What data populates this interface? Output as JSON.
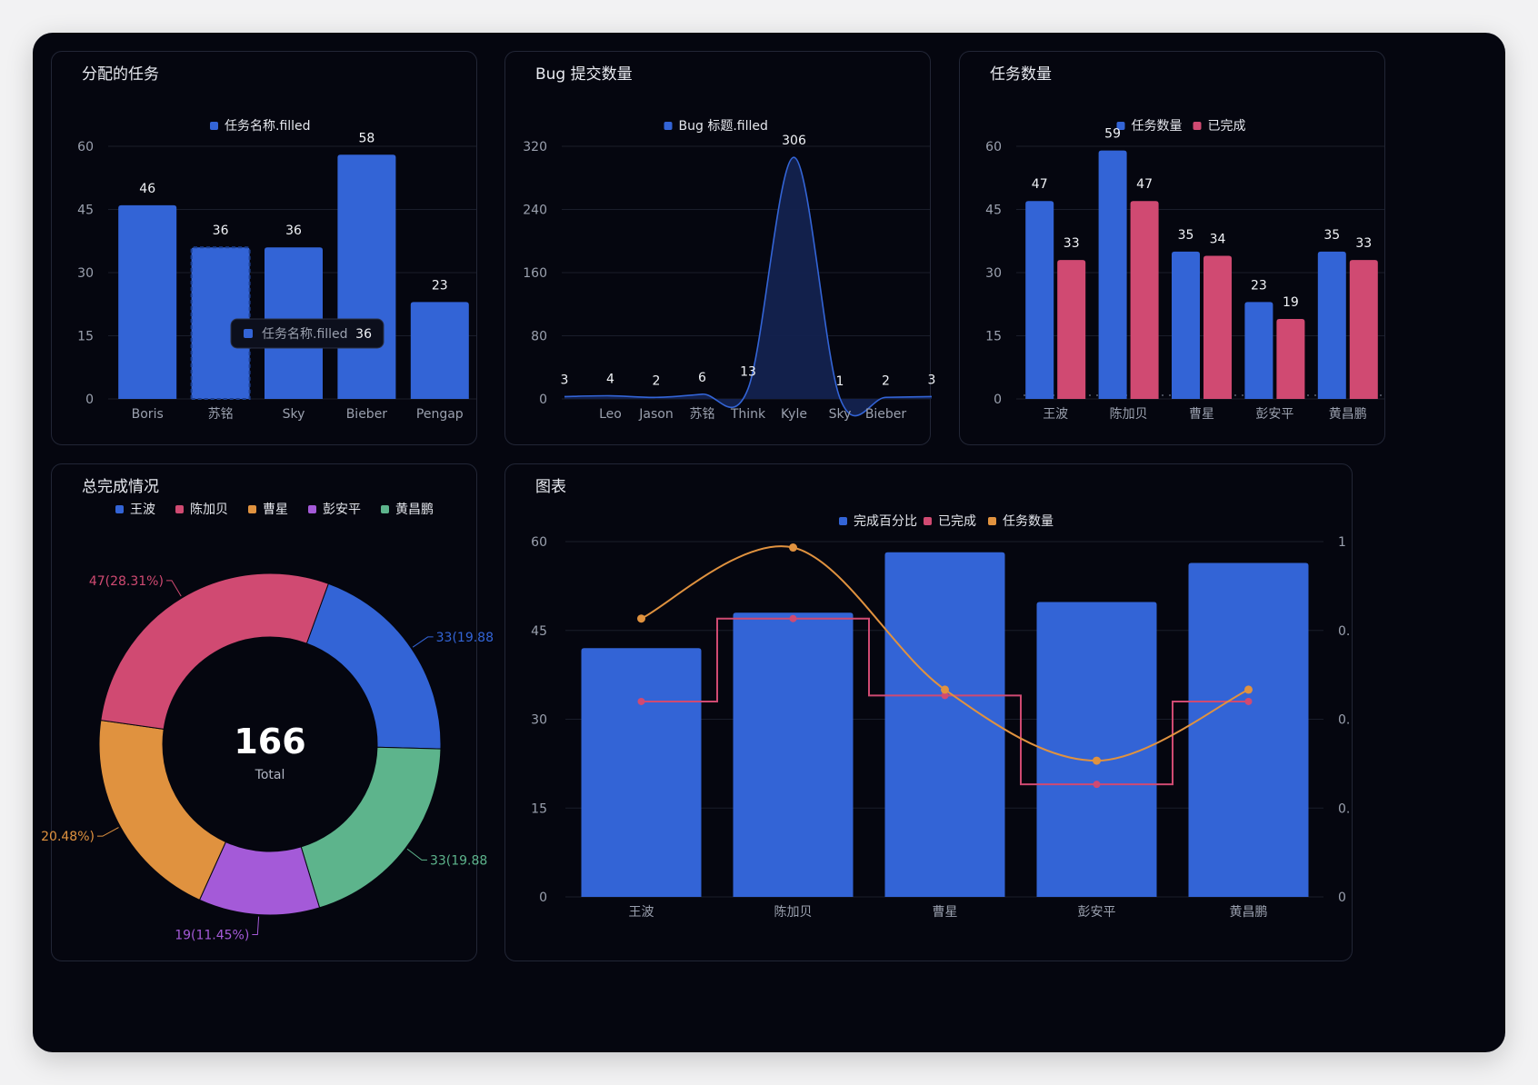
{
  "panels": {
    "assigned": {
      "title": "分配的任务"
    },
    "bugs": {
      "title": "Bug 提交数量"
    },
    "tasks": {
      "title": "任务数量"
    },
    "completion": {
      "title": "总完成情况"
    },
    "combo": {
      "title": "图表"
    }
  },
  "colors": {
    "background": "#05060f",
    "panel_border": "#222636",
    "blue": "#3364d6",
    "red": "#d04a72",
    "orange": "#e0923f",
    "purple": "#a45ad8",
    "green": "#5db48c",
    "grid": "#1a1d2a"
  },
  "chart_data": [
    {
      "type": "bar",
      "categories": [
        "Boris",
        "苏铭",
        "Sky",
        "Bieber",
        "Pengap"
      ],
      "series": [
        {
          "name": "任务名称.filled",
          "values": [
            46,
            36,
            36,
            58,
            23
          ]
        }
      ],
      "ylim": [
        0,
        60
      ],
      "yticks": [
        "0",
        "15",
        "30",
        "45",
        "60"
      ],
      "legend": "top-center",
      "grid": true,
      "tooltip": {
        "category": "苏铭",
        "label": "任务名称.filled",
        "value": "36"
      }
    },
    {
      "type": "area",
      "categories": [
        "",
        "Leo",
        "Jason",
        "苏铭",
        "Think",
        "Kyle",
        "Sky",
        "Bieber",
        ""
      ],
      "series": [
        {
          "name": "Bug 标题.filled",
          "values": [
            3,
            4,
            2,
            6,
            13,
            306,
            1,
            2,
            3
          ]
        }
      ],
      "ylim": [
        0,
        320
      ],
      "yticks": [
        "0",
        "80",
        "160",
        "240",
        "320"
      ],
      "smooth": true,
      "legend": "top-center",
      "grid": true
    },
    {
      "type": "bar",
      "categories": [
        "王波",
        "陈加贝",
        "曹星",
        "彭安平",
        "黄昌鹏"
      ],
      "series": [
        {
          "name": "任务数量",
          "values": [
            47,
            59,
            35,
            23,
            35
          ]
        },
        {
          "name": "已完成",
          "values": [
            33,
            47,
            34,
            19,
            33
          ]
        }
      ],
      "ylim": [
        0,
        60
      ],
      "yticks": [
        "0",
        "15",
        "30",
        "45",
        "60"
      ],
      "legend": "top-center",
      "grid": true
    },
    {
      "type": "pie",
      "donut": true,
      "categories": [
        "王波",
        "陈加贝",
        "曹星",
        "彭安平",
        "黄昌鹏"
      ],
      "values": [
        33,
        47,
        34,
        19,
        33
      ],
      "slice_labels": [
        "33(19.88",
        "47(28.31%)",
        "20.48%)",
        "19(11.45%)",
        "33(19.88"
      ],
      "center_value": "166",
      "center_label": "Total",
      "legend": "top-left"
    },
    {
      "type": "bar",
      "categories": [
        "王波",
        "陈加贝",
        "曹星",
        "彭安平",
        "黄昌鹏"
      ],
      "series": [
        {
          "name": "完成百分比",
          "type": "bar",
          "axis": "right",
          "values": [
            0.7,
            0.8,
            0.97,
            0.83,
            0.94
          ]
        },
        {
          "name": "已完成",
          "type": "step",
          "axis": "left",
          "values": [
            33,
            47,
            34,
            19,
            33
          ]
        },
        {
          "name": "任务数量",
          "type": "line",
          "axis": "left",
          "values": [
            47,
            59,
            35,
            23,
            35
          ]
        }
      ],
      "ylim": [
        0,
        60
      ],
      "yticks": [
        "0",
        "15",
        "30",
        "45",
        "60"
      ],
      "y2lim": [
        0,
        1
      ],
      "y2ticks": [
        "0",
        "0.",
        "0.",
        "0.",
        "1"
      ],
      "legend": "top-center",
      "grid": true
    }
  ]
}
